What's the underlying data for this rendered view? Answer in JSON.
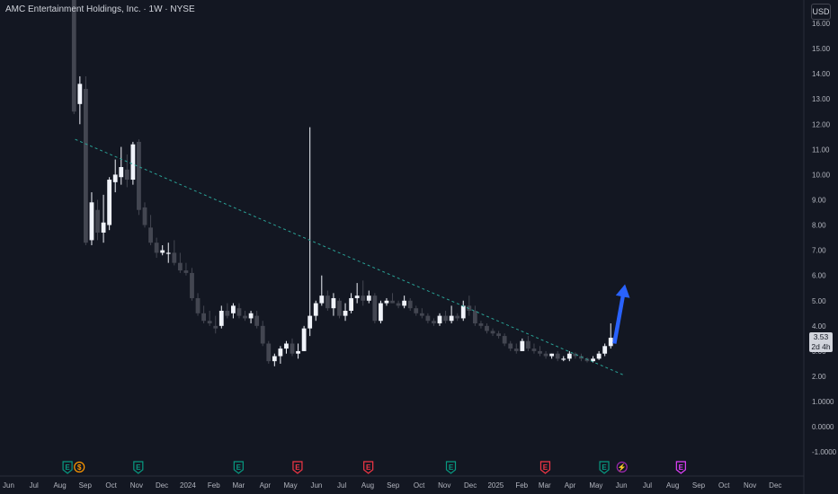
{
  "header": {
    "symbol_title": "AMC Entertainment Holdings, Inc. · 1W · NYSE",
    "currency": "USD"
  },
  "price_tag": {
    "price": "3.53",
    "countdown": "2d 4h"
  },
  "colors": {
    "background": "#131722",
    "up": "#f0f3fa",
    "down": "#434651",
    "trendline": "#2aa195",
    "arrow": "#2962ff",
    "earnings_green": "#089981",
    "earnings_red": "#f23645",
    "dividend_orange": "#ff9800",
    "split_purple": "#9c27b0",
    "future_magenta": "#e040fb"
  },
  "chart_data": {
    "type": "candlestick",
    "interval": "1W",
    "y_axis_ticks": [
      "16.00",
      "15.00",
      "14.00",
      "13.00",
      "12.00",
      "11.00",
      "10.00",
      "9.00",
      "8.00",
      "7.00",
      "6.00",
      "5.00",
      "4.00",
      "3.00",
      "2.00",
      "1.0000",
      "0.0000",
      "-1.0000"
    ],
    "ylim": [
      -1.2,
      16.4
    ],
    "x_axis_labels": [
      "Jun",
      "Jul",
      "Aug",
      "Sep",
      "Oct",
      "Nov",
      "Dec",
      "2024",
      "Feb",
      "Mar",
      "Apr",
      "May",
      "Jun",
      "Jul",
      "Aug",
      "Sep",
      "Oct",
      "Nov",
      "Dec",
      "2025",
      "Feb",
      "Mar",
      "Apr",
      "May",
      "Jun",
      "Jul",
      "Aug",
      "Sep",
      "Oct",
      "Nov",
      "Dec"
    ],
    "x_label_weeks": [
      0,
      4.3,
      8.7,
      13,
      17.4,
      21.7,
      26,
      30.4,
      34.8,
      39,
      43.5,
      47.8,
      52.2,
      56.5,
      60.9,
      65.2,
      69.6,
      73.9,
      78.3,
      82.6,
      87,
      90.9,
      95.2,
      99.6,
      103.9,
      108.3,
      112.6,
      117,
      121.3,
      125.7,
      130
    ],
    "candles": [
      {
        "o": 19.0,
        "h": 21.0,
        "l": 12.4,
        "c": 12.5
      },
      {
        "o": 12.8,
        "h": 13.9,
        "l": 12.0,
        "c": 13.6
      },
      {
        "o": 13.4,
        "h": 13.9,
        "l": 7.2,
        "c": 7.3
      },
      {
        "o": 7.4,
        "h": 9.3,
        "l": 7.2,
        "c": 8.9
      },
      {
        "o": 8.6,
        "h": 9.0,
        "l": 7.4,
        "c": 7.7
      },
      {
        "o": 7.7,
        "h": 9.2,
        "l": 7.3,
        "c": 8.1
      },
      {
        "o": 8.0,
        "h": 9.9,
        "l": 7.8,
        "c": 9.8
      },
      {
        "o": 9.7,
        "h": 10.6,
        "l": 9.3,
        "c": 10.0
      },
      {
        "o": 9.9,
        "h": 11.1,
        "l": 9.6,
        "c": 10.3
      },
      {
        "o": 10.2,
        "h": 10.8,
        "l": 9.5,
        "c": 9.8
      },
      {
        "o": 9.8,
        "h": 11.3,
        "l": 9.6,
        "c": 11.2
      },
      {
        "o": 11.3,
        "h": 11.4,
        "l": 8.4,
        "c": 8.6
      },
      {
        "o": 8.7,
        "h": 8.9,
        "l": 7.9,
        "c": 8.0
      },
      {
        "o": 7.9,
        "h": 8.4,
        "l": 7.2,
        "c": 7.3
      },
      {
        "o": 7.3,
        "h": 7.5,
        "l": 6.7,
        "c": 6.9
      },
      {
        "o": 6.9,
        "h": 7.2,
        "l": 6.8,
        "c": 7.0
      },
      {
        "o": 6.9,
        "h": 7.3,
        "l": 6.5,
        "c": 6.9
      },
      {
        "o": 6.9,
        "h": 7.4,
        "l": 6.4,
        "c": 6.5
      },
      {
        "o": 6.5,
        "h": 6.9,
        "l": 6.1,
        "c": 6.2
      },
      {
        "o": 6.2,
        "h": 6.5,
        "l": 6.0,
        "c": 6.1
      },
      {
        "o": 6.1,
        "h": 6.3,
        "l": 5.0,
        "c": 5.1
      },
      {
        "o": 5.1,
        "h": 5.3,
        "l": 4.4,
        "c": 4.5
      },
      {
        "o": 4.5,
        "h": 4.8,
        "l": 4.1,
        "c": 4.2
      },
      {
        "o": 4.2,
        "h": 4.6,
        "l": 4.0,
        "c": 4.1
      },
      {
        "o": 4.0,
        "h": 4.4,
        "l": 3.7,
        "c": 3.9
      },
      {
        "o": 4.0,
        "h": 4.8,
        "l": 3.9,
        "c": 4.6
      },
      {
        "o": 4.6,
        "h": 4.9,
        "l": 4.3,
        "c": 4.4
      },
      {
        "o": 4.5,
        "h": 4.9,
        "l": 4.3,
        "c": 4.8
      },
      {
        "o": 4.7,
        "h": 4.9,
        "l": 4.3,
        "c": 4.4
      },
      {
        "o": 4.4,
        "h": 4.6,
        "l": 4.2,
        "c": 4.3
      },
      {
        "o": 4.3,
        "h": 4.6,
        "l": 4.1,
        "c": 4.5
      },
      {
        "o": 4.4,
        "h": 4.6,
        "l": 3.9,
        "c": 4.0
      },
      {
        "o": 4.0,
        "h": 4.2,
        "l": 3.2,
        "c": 3.3
      },
      {
        "o": 3.3,
        "h": 3.4,
        "l": 2.5,
        "c": 2.6
      },
      {
        "o": 2.6,
        "h": 2.9,
        "l": 2.4,
        "c": 2.8
      },
      {
        "o": 2.8,
        "h": 3.2,
        "l": 2.5,
        "c": 3.1
      },
      {
        "o": 3.1,
        "h": 3.4,
        "l": 2.9,
        "c": 3.3
      },
      {
        "o": 3.3,
        "h": 3.5,
        "l": 2.8,
        "c": 2.9
      },
      {
        "o": 2.9,
        "h": 3.3,
        "l": 2.7,
        "c": 3.0
      },
      {
        "o": 3.0,
        "h": 4.0,
        "l": 3.0,
        "c": 3.9
      },
      {
        "o": 3.9,
        "h": 11.88,
        "l": 3.6,
        "c": 4.4
      },
      {
        "o": 4.4,
        "h": 5.0,
        "l": 4.2,
        "c": 4.9
      },
      {
        "o": 4.9,
        "h": 6.0,
        "l": 4.8,
        "c": 5.2
      },
      {
        "o": 5.2,
        "h": 5.4,
        "l": 4.6,
        "c": 4.7
      },
      {
        "o": 4.7,
        "h": 5.3,
        "l": 4.4,
        "c": 5.1
      },
      {
        "o": 5.0,
        "h": 5.1,
        "l": 4.3,
        "c": 4.4
      },
      {
        "o": 4.4,
        "h": 4.9,
        "l": 4.2,
        "c": 4.6
      },
      {
        "o": 4.6,
        "h": 5.3,
        "l": 4.5,
        "c": 5.1
      },
      {
        "o": 5.1,
        "h": 5.7,
        "l": 4.9,
        "c": 5.2
      },
      {
        "o": 5.2,
        "h": 5.8,
        "l": 4.8,
        "c": 5.0
      },
      {
        "o": 5.0,
        "h": 5.4,
        "l": 4.9,
        "c": 5.2
      },
      {
        "o": 5.2,
        "h": 5.3,
        "l": 4.1,
        "c": 4.2
      },
      {
        "o": 4.2,
        "h": 5.0,
        "l": 4.1,
        "c": 4.9
      },
      {
        "o": 4.9,
        "h": 5.1,
        "l": 4.8,
        "c": 5.0
      },
      {
        "o": 5.0,
        "h": 5.3,
        "l": 4.9,
        "c": 4.9
      },
      {
        "o": 4.9,
        "h": 5.0,
        "l": 4.7,
        "c": 4.8
      },
      {
        "o": 4.8,
        "h": 5.2,
        "l": 4.7,
        "c": 5.0
      },
      {
        "o": 5.0,
        "h": 5.1,
        "l": 4.6,
        "c": 4.7
      },
      {
        "o": 4.7,
        "h": 4.8,
        "l": 4.4,
        "c": 4.5
      },
      {
        "o": 4.5,
        "h": 4.7,
        "l": 4.3,
        "c": 4.4
      },
      {
        "o": 4.4,
        "h": 4.5,
        "l": 4.1,
        "c": 4.2
      },
      {
        "o": 4.2,
        "h": 4.3,
        "l": 4.0,
        "c": 4.1
      },
      {
        "o": 4.1,
        "h": 4.5,
        "l": 4.0,
        "c": 4.4
      },
      {
        "o": 4.4,
        "h": 4.6,
        "l": 4.1,
        "c": 4.2
      },
      {
        "o": 4.2,
        "h": 4.8,
        "l": 4.1,
        "c": 4.4
      },
      {
        "o": 4.4,
        "h": 4.5,
        "l": 4.2,
        "c": 4.3
      },
      {
        "o": 4.3,
        "h": 5.0,
        "l": 4.2,
        "c": 4.8
      },
      {
        "o": 4.8,
        "h": 5.2,
        "l": 4.4,
        "c": 4.6
      },
      {
        "o": 4.6,
        "h": 4.8,
        "l": 4.0,
        "c": 4.1
      },
      {
        "o": 4.1,
        "h": 4.2,
        "l": 3.9,
        "c": 4.0
      },
      {
        "o": 4.0,
        "h": 4.1,
        "l": 3.7,
        "c": 3.8
      },
      {
        "o": 3.8,
        "h": 3.9,
        "l": 3.6,
        "c": 3.7
      },
      {
        "o": 3.7,
        "h": 3.8,
        "l": 3.5,
        "c": 3.6
      },
      {
        "o": 3.6,
        "h": 3.7,
        "l": 3.2,
        "c": 3.3
      },
      {
        "o": 3.3,
        "h": 3.4,
        "l": 3.0,
        "c": 3.1
      },
      {
        "o": 3.1,
        "h": 3.3,
        "l": 2.9,
        "c": 3.0
      },
      {
        "o": 3.0,
        "h": 3.5,
        "l": 3.0,
        "c": 3.4
      },
      {
        "o": 3.4,
        "h": 3.6,
        "l": 3.0,
        "c": 3.1
      },
      {
        "o": 3.1,
        "h": 3.3,
        "l": 2.9,
        "c": 3.0
      },
      {
        "o": 3.0,
        "h": 3.2,
        "l": 2.8,
        "c": 2.9
      },
      {
        "o": 2.9,
        "h": 3.0,
        "l": 2.7,
        "c": 2.8
      },
      {
        "o": 2.8,
        "h": 2.9,
        "l": 2.7,
        "c": 2.9
      },
      {
        "o": 2.9,
        "h": 3.0,
        "l": 2.6,
        "c": 2.7
      },
      {
        "o": 2.7,
        "h": 2.8,
        "l": 2.6,
        "c": 2.7
      },
      {
        "o": 2.7,
        "h": 3.0,
        "l": 2.6,
        "c": 2.9
      },
      {
        "o": 2.9,
        "h": 2.95,
        "l": 2.7,
        "c": 2.8
      },
      {
        "o": 2.8,
        "h": 2.9,
        "l": 2.6,
        "c": 2.7
      },
      {
        "o": 2.7,
        "h": 2.75,
        "l": 2.55,
        "c": 2.6
      },
      {
        "o": 2.6,
        "h": 2.8,
        "l": 2.55,
        "c": 2.7
      },
      {
        "o": 2.7,
        "h": 3.0,
        "l": 2.65,
        "c": 2.9
      },
      {
        "o": 2.9,
        "h": 3.3,
        "l": 2.8,
        "c": 3.2
      },
      {
        "o": 3.2,
        "h": 4.1,
        "l": 3.1,
        "c": 3.53
      }
    ],
    "trendline": {
      "start": [
        11.6,
        11.4
      ],
      "end": [
        104.6,
        2.05
      ]
    },
    "projection_arrow": {
      "from": [
        101.8,
        3.3
      ],
      "to": [
        103.3,
        5.65
      ]
    },
    "event_markers": [
      {
        "label": "E",
        "type": "earnings_green",
        "week": 10
      },
      {
        "label": "$",
        "type": "dividend_orange",
        "week": 12
      },
      {
        "label": "E",
        "type": "earnings_green",
        "week": 22
      },
      {
        "label": "E",
        "type": "earnings_green",
        "week": 39
      },
      {
        "label": "E",
        "type": "earnings_red",
        "week": 49
      },
      {
        "label": "E",
        "type": "earnings_red",
        "week": 61
      },
      {
        "label": "E",
        "type": "earnings_green",
        "week": 75
      },
      {
        "label": "E",
        "type": "earnings_red",
        "week": 91
      },
      {
        "label": "E",
        "type": "earnings_green",
        "week": 101
      },
      {
        "label": "⚡",
        "type": "split_purple",
        "week": 104
      },
      {
        "label": "E",
        "type": "future_magenta",
        "week": 114
      }
    ]
  }
}
